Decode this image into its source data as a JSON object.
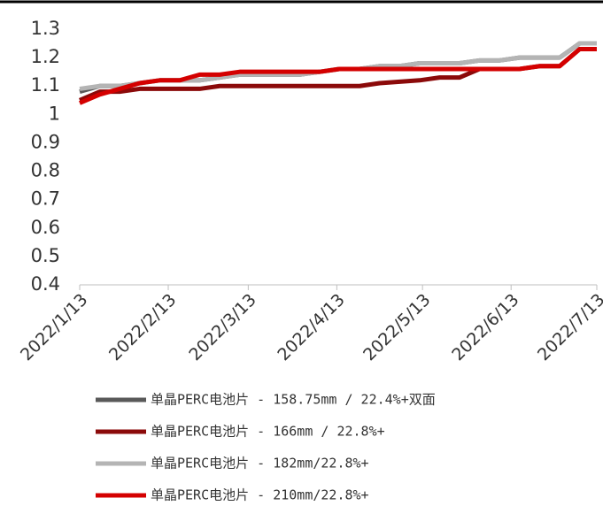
{
  "chart_data": {
    "type": "line",
    "x": [
      "2022/1/13",
      "2022/1/20",
      "2022/1/27",
      "2022/2/3",
      "2022/2/10",
      "2022/2/17",
      "2022/2/24",
      "2022/3/3",
      "2022/3/10",
      "2022/3/17",
      "2022/3/24",
      "2022/3/31",
      "2022/4/7",
      "2022/4/14",
      "2022/4/21",
      "2022/4/28",
      "2022/5/5",
      "2022/5/12",
      "2022/5/19",
      "2022/5/26",
      "2022/6/2",
      "2022/6/9",
      "2022/6/16",
      "2022/6/23",
      "2022/6/30",
      "2022/7/7",
      "2022/7/13"
    ],
    "series": [
      {
        "name": "单晶PERC电池片 - 158.75mm / 22.4%+双面",
        "color": "#595959",
        "values": [
          1.08,
          1.1,
          1.1,
          1.11,
          1.12,
          1.12,
          1.12,
          1.13,
          1.14,
          1.14,
          1.14,
          1.14,
          1.15,
          1.16,
          1.16,
          1.17,
          1.17,
          1.18,
          1.18,
          1.18,
          1.19,
          1.19,
          1.2,
          1.2,
          1.2,
          1.25,
          1.25
        ]
      },
      {
        "name": "单晶PERC电池片 - 166mm / 22.8%+",
        "color": "#8b0a0a",
        "values": [
          1.05,
          1.08,
          1.08,
          1.09,
          1.09,
          1.09,
          1.09,
          1.1,
          1.1,
          1.1,
          1.1,
          1.1,
          1.1,
          1.1,
          1.1,
          1.11,
          1.115,
          1.12,
          1.13,
          1.13,
          1.16,
          1.16,
          1.16,
          1.17,
          1.17,
          1.23,
          1.23
        ]
      },
      {
        "name": "单晶PERC电池片 - 182mm/22.8%+",
        "color": "#b4b4b4",
        "values": [
          1.09,
          1.1,
          1.1,
          1.11,
          1.12,
          1.12,
          1.12,
          1.13,
          1.14,
          1.14,
          1.14,
          1.14,
          1.15,
          1.16,
          1.16,
          1.17,
          1.17,
          1.18,
          1.18,
          1.18,
          1.19,
          1.19,
          1.2,
          1.2,
          1.2,
          1.25,
          1.25
        ]
      },
      {
        "name": "单晶PERC电池片 - 210mm/22.8%+",
        "color": "#d40000",
        "values": [
          1.04,
          1.07,
          1.09,
          1.11,
          1.12,
          1.12,
          1.14,
          1.14,
          1.15,
          1.15,
          1.15,
          1.15,
          1.15,
          1.16,
          1.16,
          1.16,
          1.16,
          1.16,
          1.16,
          1.16,
          1.16,
          1.16,
          1.16,
          1.17,
          1.17,
          1.23,
          1.23
        ]
      }
    ],
    "xticks": [
      "2022/1/13",
      "2022/2/13",
      "2022/3/13",
      "2022/4/13",
      "2022/5/13",
      "2022/6/13",
      "2022/7/13"
    ],
    "ylim": [
      0.4,
      1.3
    ],
    "yticks": [
      0.4,
      0.5,
      0.6,
      0.7,
      0.8,
      0.9,
      1,
      1.1,
      1.2,
      1.3
    ],
    "grid": false
  }
}
